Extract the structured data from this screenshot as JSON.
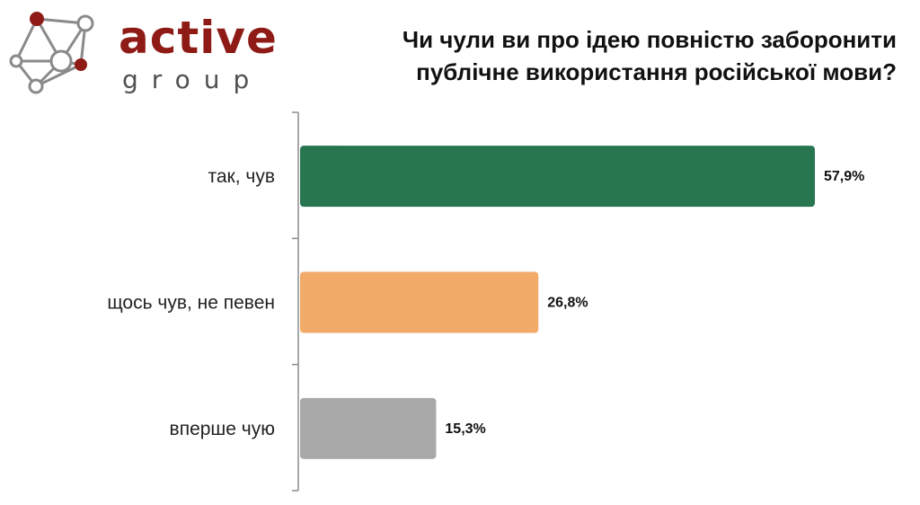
{
  "logo": {
    "word": "active",
    "sub": "group",
    "accent_color": "#8e1b16"
  },
  "chart_data": {
    "type": "bar",
    "orientation": "horizontal",
    "title": "Чи чули ви про ідею повністю заборонити публічне використання російської мови?",
    "title_lines": [
      "Чи чули ви про ідею повністю заборонити",
      "публічне використання російської мови?"
    ],
    "categories": [
      "так, чув",
      "щось чув, не певен",
      "вперше чую"
    ],
    "values": [
      57.9,
      26.8,
      15.3
    ],
    "value_labels": [
      "57,9%",
      "26,8%",
      "15,3%"
    ],
    "colors": [
      "#277650",
      "#f2aa68",
      "#a9a9a9"
    ],
    "xlim": [
      0,
      60
    ],
    "grid": false,
    "legend": "none"
  }
}
